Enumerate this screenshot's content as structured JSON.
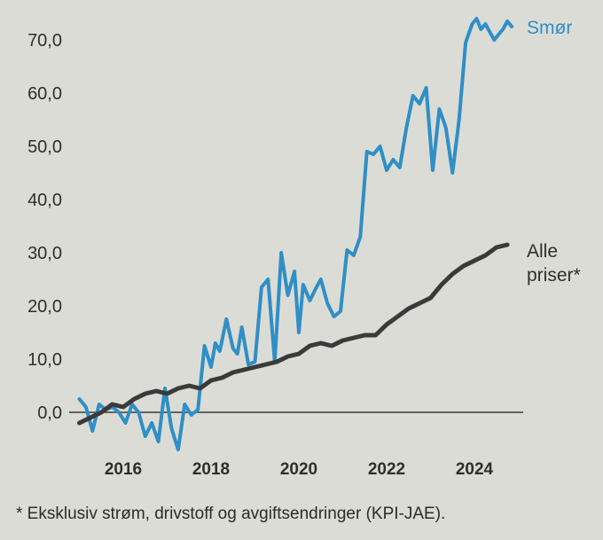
{
  "chart_data": {
    "type": "line",
    "title": "",
    "xlabel": "",
    "ylabel": "",
    "xlim": [
      2014.8,
      2025.0
    ],
    "ylim": [
      -7,
      75
    ],
    "y_ticks": [
      "0,0",
      "10,0",
      "20,0",
      "30,0",
      "40,0",
      "50,0",
      "60,0",
      "70,0"
    ],
    "y_tick_values": [
      0,
      10,
      20,
      30,
      40,
      50,
      60,
      70
    ],
    "x_ticks": [
      "2016",
      "2018",
      "2020",
      "2022",
      "2024"
    ],
    "x_tick_values": [
      2016,
      2018,
      2020,
      2022,
      2024
    ],
    "grid": false,
    "baseline": 0,
    "series": [
      {
        "name": "Smør",
        "label_lines": [
          "Smør"
        ],
        "color": "#2f8fc6",
        "x": [
          2015.0,
          2015.15,
          2015.3,
          2015.45,
          2015.6,
          2015.75,
          2015.9,
          2016.05,
          2016.2,
          2016.35,
          2016.5,
          2016.65,
          2016.8,
          2016.95,
          2017.1,
          2017.25,
          2017.4,
          2017.55,
          2017.7,
          2017.85,
          2018.0,
          2018.1,
          2018.2,
          2018.35,
          2018.5,
          2018.6,
          2018.7,
          2018.85,
          2019.0,
          2019.15,
          2019.3,
          2019.45,
          2019.6,
          2019.75,
          2019.9,
          2020.0,
          2020.1,
          2020.25,
          2020.4,
          2020.5,
          2020.65,
          2020.8,
          2020.95,
          2021.1,
          2021.25,
          2021.4,
          2021.55,
          2021.7,
          2021.85,
          2022.0,
          2022.15,
          2022.3,
          2022.45,
          2022.6,
          2022.75,
          2022.9,
          2023.05,
          2023.2,
          2023.35,
          2023.5,
          2023.65,
          2023.8,
          2023.95,
          2024.05,
          2024.15,
          2024.25,
          2024.35,
          2024.45,
          2024.55,
          2024.65,
          2024.75,
          2024.85
        ],
        "values": [
          2.5,
          1.0,
          -3.5,
          1.5,
          0.5,
          1.0,
          0.0,
          -2.0,
          1.5,
          0.0,
          -4.5,
          -2.0,
          -5.5,
          4.5,
          -3.0,
          -7.0,
          1.5,
          -0.5,
          0.5,
          12.5,
          8.5,
          13.0,
          11.5,
          17.5,
          12.0,
          11.0,
          16.0,
          9.0,
          9.5,
          23.5,
          25.0,
          9.5,
          30.0,
          22.0,
          26.5,
          15.0,
          24.0,
          21.0,
          23.5,
          25.0,
          20.5,
          18.0,
          19.0,
          30.5,
          29.5,
          33.0,
          49.0,
          48.5,
          50.0,
          45.5,
          47.5,
          46.0,
          53.5,
          59.5,
          58.0,
          61.0,
          45.5,
          57.0,
          53.5,
          45.0,
          55.0,
          69.5,
          73.0,
          74.0,
          72.0,
          73.0,
          71.5,
          70.0,
          71.0,
          72.0,
          73.5,
          72.5
        ]
      },
      {
        "name": "Alle priser*",
        "label_lines": [
          "Alle",
          "priser*"
        ],
        "color": "#3a3a3a",
        "x": [
          2015.0,
          2015.25,
          2015.5,
          2015.75,
          2016.0,
          2016.25,
          2016.5,
          2016.75,
          2017.0,
          2017.25,
          2017.5,
          2017.75,
          2018.0,
          2018.25,
          2018.5,
          2018.75,
          2019.0,
          2019.25,
          2019.5,
          2019.75,
          2020.0,
          2020.25,
          2020.5,
          2020.75,
          2021.0,
          2021.25,
          2021.5,
          2021.75,
          2022.0,
          2022.25,
          2022.5,
          2022.75,
          2023.0,
          2023.25,
          2023.5,
          2023.75,
          2024.0,
          2024.25,
          2024.5,
          2024.75
        ],
        "values": [
          -2.0,
          -1.0,
          0.0,
          1.5,
          1.0,
          2.5,
          3.5,
          4.0,
          3.5,
          4.5,
          5.0,
          4.5,
          6.0,
          6.5,
          7.5,
          8.0,
          8.5,
          9.0,
          9.5,
          10.5,
          11.0,
          12.5,
          13.0,
          12.5,
          13.5,
          14.0,
          14.5,
          14.5,
          16.5,
          18.0,
          19.5,
          20.5,
          21.5,
          24.0,
          26.0,
          27.5,
          28.5,
          29.5,
          31.0,
          31.5
        ]
      }
    ]
  },
  "footnote": "* Eksklusiv strøm, drivstoff og avgiftsendringer (KPI-JAE)."
}
